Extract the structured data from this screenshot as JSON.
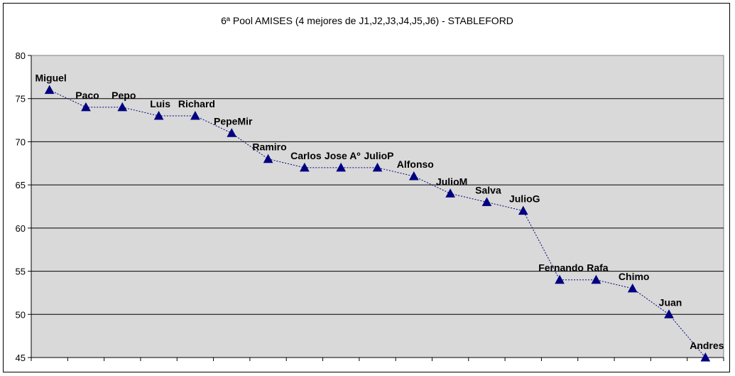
{
  "chart_data": {
    "type": "line",
    "title": "6ª Pool AMISES (4 mejores de J1,J2,J3,J4,J5,J6) - STABLEFORD",
    "xlabel": "",
    "ylabel": "",
    "ylim": [
      45,
      80
    ],
    "yticks": [
      45,
      50,
      55,
      60,
      65,
      70,
      75,
      80
    ],
    "grid": "horizontal",
    "marker": "triangle",
    "line_style": "dotted",
    "colors": {
      "plot_background": "#d9d9d9",
      "series": "#000080",
      "grid": "#000000"
    },
    "series": [
      {
        "labels": [
          "Miguel",
          "Paco",
          "Pepo",
          "Luis",
          "Richard",
          "PepeMir",
          "Ramiro",
          "Carlos",
          "Jose Aº",
          "JulioP",
          "Alfonso",
          "JulioM",
          "Salva",
          "JulioG",
          "Fernando",
          "Rafa",
          "Chimo",
          "Juan",
          "Andres"
        ],
        "values": [
          76,
          74,
          74,
          73,
          73,
          71,
          68,
          67,
          67,
          67,
          66,
          64,
          63,
          62,
          54,
          54,
          53,
          50,
          45
        ]
      }
    ]
  }
}
